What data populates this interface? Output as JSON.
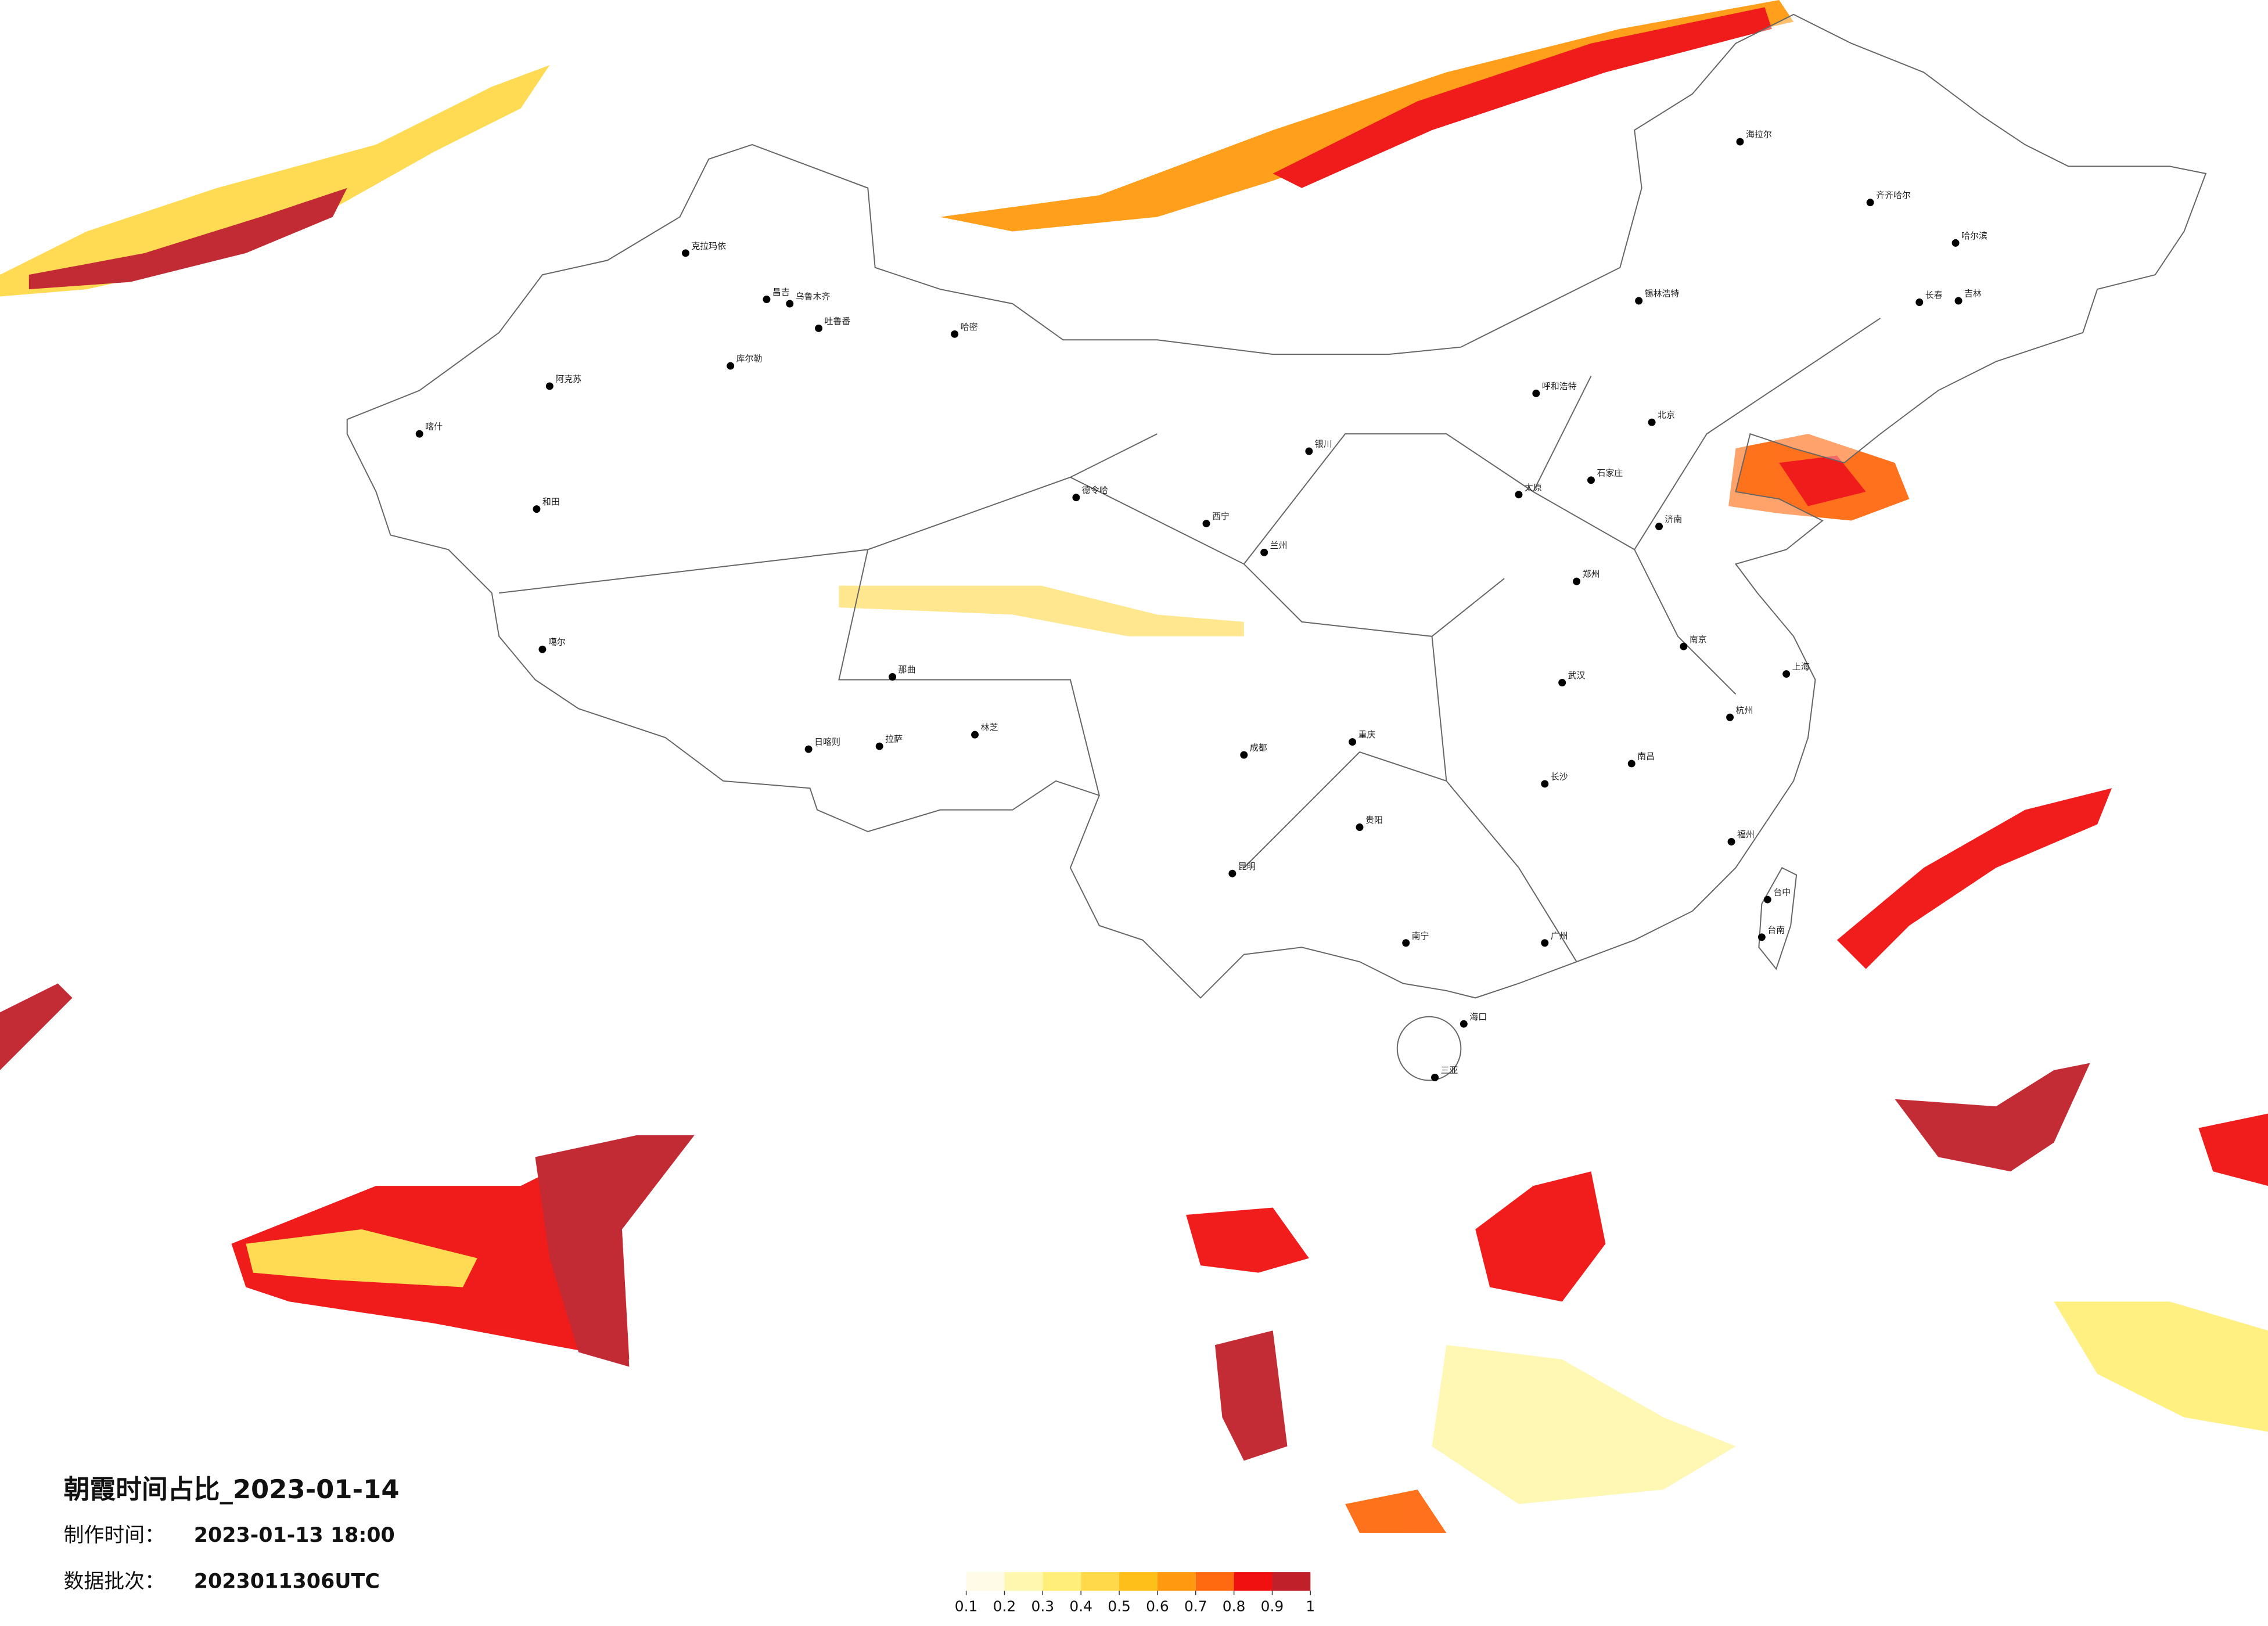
{
  "title": "朝霞时间占比_2023-01-14",
  "production_time": {
    "label": "制作时间：",
    "value": "2023-01-13 18:00"
  },
  "batch": {
    "label": "数据批次：",
    "value": "2023011306UTC"
  },
  "legend": {
    "ticks": [
      0.1,
      0.2,
      0.3,
      0.4,
      0.5,
      0.6,
      0.7,
      0.8,
      0.9,
      1
    ],
    "colors": [
      "#fffbe6",
      "#fff7b0",
      "#ffef7a",
      "#ffd94a",
      "#ffbf1a",
      "#ff9a10",
      "#ff6a10",
      "#f01010",
      "#c0202a"
    ]
  },
  "cities": [
    "克拉玛依",
    "昌吉",
    "乌鲁木齐",
    "吐鲁番",
    "哈密",
    "库尔勒",
    "阿克苏",
    "和田",
    "喀什",
    "德令哈",
    "噶尔",
    "那曲",
    "拉萨",
    "日喀则",
    "林芝",
    "西宁",
    "兰州",
    "银川",
    "呼和浩特",
    "北京",
    "石家庄",
    "太原",
    "哈尔滨",
    "长春",
    "吉林",
    "齐齐哈尔",
    "海拉尔",
    "锡林浩特",
    "成都",
    "重庆",
    "昆明",
    "贵阳",
    "南宁",
    "广州",
    "福州",
    "台中",
    "台南",
    "海口",
    "三亚",
    "郑州",
    "武汉",
    "长沙",
    "南昌",
    "杭州",
    "上海",
    "南京",
    "济南"
  ]
}
